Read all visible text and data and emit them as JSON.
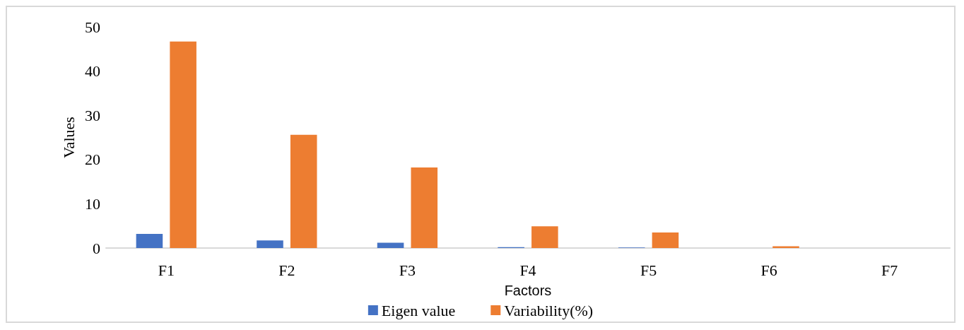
{
  "chart_data": {
    "type": "bar",
    "xlabel": "Factors",
    "ylabel": "Values",
    "categories": [
      "F1",
      "F2",
      "F3",
      "F4",
      "F5",
      "F6",
      "F7"
    ],
    "series": [
      {
        "name": "Eigen value",
        "color": "#4472c4",
        "values": [
          3.2,
          1.7,
          1.2,
          0.2,
          0.1,
          0,
          0
        ]
      },
      {
        "name": "Variability(%)",
        "color": "#ed7d31",
        "values": [
          46.7,
          25.6,
          18.2,
          4.9,
          3.5,
          0.4,
          0
        ]
      }
    ],
    "ylim": [
      0,
      50
    ],
    "yticks": [
      0,
      10,
      20,
      30,
      40,
      50
    ],
    "grid": false,
    "legend": "bottom"
  }
}
